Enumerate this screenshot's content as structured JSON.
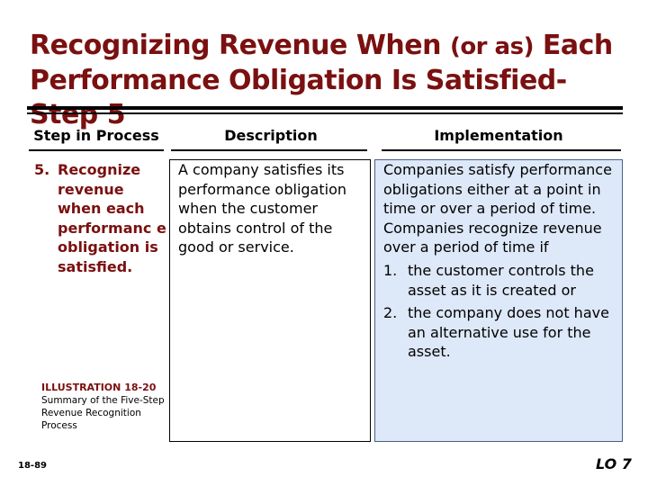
{
  "title": {
    "part1": "Recognizing Revenue When ",
    "part2": "(or as)",
    "part3": " Each",
    "line2": "Performance Obligation Is Satisfied-",
    "line3": "Step 5"
  },
  "table": {
    "headers": {
      "step": "Step in Process",
      "description": "Description",
      "implementation": "Implementation"
    },
    "step_number": "5.",
    "step_label": "Recognize revenue when each performanc e obligation is satisfied.",
    "description": "A company satisfies its performance obligation when the customer obtains control of the good or service.",
    "implementation_intro": "Companies satisfy performance obligations either at a point in time or over a period of time. Companies recognize revenue over a period of time if",
    "implementation_items": [
      {
        "num": "1.",
        "text": "the customer controls the asset as it is created or"
      },
      {
        "num": "2.",
        "text": "the company does not have an alternative use for the asset."
      }
    ]
  },
  "illustration": {
    "caption": "ILLUSTRATION 18-20",
    "text": "Summary of the Five-Step Revenue Recognition Process"
  },
  "footer": {
    "page": "18-89",
    "lo": "LO 7"
  },
  "colors": {
    "title": "#7a1010",
    "impl_bg": "#dde8f8"
  }
}
